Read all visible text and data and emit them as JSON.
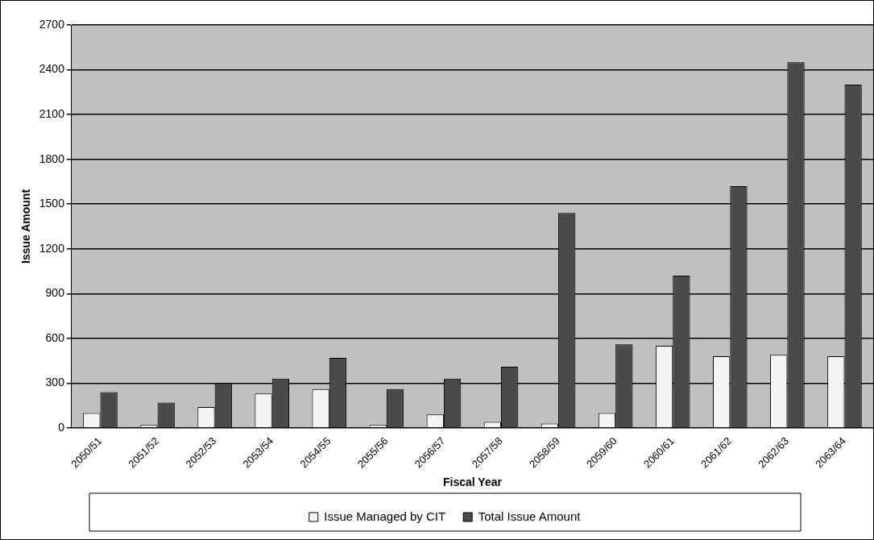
{
  "chart_data": {
    "type": "bar",
    "xlabel": "Fiscal Year",
    "ylabel": "Issue Amount",
    "categories": [
      "2050/51",
      "2051/52",
      "2052/53",
      "2053/54",
      "2054/55",
      "2055/56",
      "2056/57",
      "2057/58",
      "2058/59",
      "2059/60",
      "2060/61",
      "2061/62",
      "2062/63",
      "2063/64"
    ],
    "series": [
      {
        "name": "Issue Managed by CIT",
        "color": "#f4f4f4",
        "values": [
          100,
          20,
          140,
          230,
          260,
          20,
          90,
          40,
          30,
          100,
          550,
          480,
          490,
          480
        ]
      },
      {
        "name": "Total Issue Amount",
        "color": "#4a4a4a",
        "values": [
          240,
          170,
          300,
          330,
          470,
          260,
          330,
          410,
          1440,
          560,
          1020,
          1620,
          2450,
          2300
        ]
      }
    ],
    "ylim": [
      0,
      2700
    ],
    "yticks": [
      0,
      300,
      600,
      900,
      1200,
      1500,
      1800,
      2100,
      2400,
      2700
    ],
    "grid": "y",
    "legend": "bottom"
  }
}
